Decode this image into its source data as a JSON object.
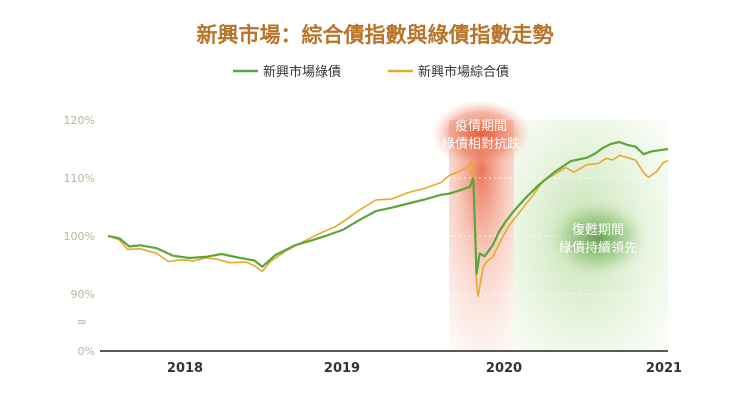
{
  "title": "新興市場：綜合債指數與綠債指數走勢",
  "colors": {
    "title": "#b8742a",
    "green_series": "#5aa63a",
    "orange_series": "#e8a92b",
    "axis_label": "#b9b79a",
    "axis_line": "#222222",
    "year_label": "#333333",
    "covid_band": "#e9785a",
    "recovery_band": "#c9e3b2",
    "annotation_text": "#ffffff"
  },
  "annotations": {
    "covid": {
      "line1": "疫情期間",
      "line2": "綠債相對抗跌"
    },
    "recovery": {
      "line1": "復甦期間",
      "line2": "綠債持續領先"
    }
  },
  "axis_break_symbol": "≈",
  "chart_data": {
    "type": "line",
    "ylim": [
      0,
      120
    ],
    "y_scale": "broken axis: 0% then 90%–120%",
    "yticks": [
      {
        "label": "120%",
        "value": 120
      },
      {
        "label": "110%",
        "value": 110
      },
      {
        "label": "100%",
        "value": 100
      },
      {
        "label": "90%",
        "value": 90
      },
      {
        "label": "0%",
        "value": 0
      }
    ],
    "xticks": [
      {
        "label": "2018",
        "value": 2018.0
      },
      {
        "label": "2019",
        "value": 2019.0
      },
      {
        "label": "2020",
        "value": 2020.0
      },
      {
        "label": "2021",
        "value": 2021.0
      }
    ],
    "xlim": [
      2017.5,
      2021.0
    ],
    "grid": false,
    "legend_placement": "top-center",
    "series": [
      {
        "name": "新興市場綠債",
        "color": "#5aa63a",
        "points": [
          [
            2017.55,
            100.0
          ],
          [
            2017.62,
            99.6
          ],
          [
            2017.68,
            98.2
          ],
          [
            2017.75,
            98.4
          ],
          [
            2017.85,
            97.9
          ],
          [
            2017.95,
            96.6
          ],
          [
            2018.05,
            96.2
          ],
          [
            2018.15,
            96.4
          ],
          [
            2018.25,
            96.9
          ],
          [
            2018.35,
            96.3
          ],
          [
            2018.45,
            95.8
          ],
          [
            2018.5,
            94.7
          ],
          [
            2018.58,
            96.7
          ],
          [
            2018.7,
            98.4
          ],
          [
            2018.8,
            99.2
          ],
          [
            2018.9,
            100.1
          ],
          [
            2019.0,
            101.1
          ],
          [
            2019.1,
            102.8
          ],
          [
            2019.2,
            104.3
          ],
          [
            2019.3,
            104.9
          ],
          [
            2019.4,
            105.6
          ],
          [
            2019.5,
            106.3
          ],
          [
            2019.6,
            107.1
          ],
          [
            2019.65,
            107.3
          ],
          [
            2019.72,
            107.9
          ],
          [
            2019.78,
            108.5
          ],
          [
            2019.8,
            110.0
          ],
          [
            2019.81,
            102.0
          ],
          [
            2019.82,
            93.5
          ],
          [
            2019.84,
            97.0
          ],
          [
            2019.87,
            96.5
          ],
          [
            2019.92,
            98.4
          ],
          [
            2019.96,
            100.8
          ],
          [
            2020.0,
            102.5
          ],
          [
            2020.05,
            104.3
          ],
          [
            2020.12,
            106.5
          ],
          [
            2020.2,
            108.7
          ],
          [
            2020.3,
            111.0
          ],
          [
            2020.4,
            112.9
          ],
          [
            2020.5,
            113.5
          ],
          [
            2020.55,
            114.2
          ],
          [
            2020.6,
            115.2
          ],
          [
            2020.65,
            115.9
          ],
          [
            2020.7,
            116.2
          ],
          [
            2020.75,
            115.7
          ],
          [
            2020.8,
            115.4
          ],
          [
            2020.85,
            114.1
          ],
          [
            2020.9,
            114.6
          ],
          [
            2020.95,
            114.8
          ],
          [
            2021.0,
            115.0
          ]
        ]
      },
      {
        "name": "新興市場綜合債",
        "color": "#e8a92b",
        "points": [
          [
            2017.55,
            100.1
          ],
          [
            2017.62,
            99.3
          ],
          [
            2017.67,
            97.7
          ],
          [
            2017.75,
            97.8
          ],
          [
            2017.85,
            97.0
          ],
          [
            2017.92,
            95.6
          ],
          [
            2018.0,
            95.9
          ],
          [
            2018.08,
            95.7
          ],
          [
            2018.15,
            96.2
          ],
          [
            2018.22,
            96.0
          ],
          [
            2018.3,
            95.4
          ],
          [
            2018.4,
            95.5
          ],
          [
            2018.45,
            94.9
          ],
          [
            2018.5,
            93.9
          ],
          [
            2018.55,
            95.6
          ],
          [
            2018.65,
            97.5
          ],
          [
            2018.75,
            99.0
          ],
          [
            2018.85,
            100.4
          ],
          [
            2018.95,
            101.6
          ],
          [
            2019.02,
            102.9
          ],
          [
            2019.1,
            104.5
          ],
          [
            2019.2,
            106.2
          ],
          [
            2019.3,
            106.4
          ],
          [
            2019.4,
            107.5
          ],
          [
            2019.5,
            108.2
          ],
          [
            2019.6,
            109.2
          ],
          [
            2019.65,
            110.4
          ],
          [
            2019.72,
            111.2
          ],
          [
            2019.77,
            112.0
          ],
          [
            2019.79,
            112.9
          ],
          [
            2019.8,
            111.0
          ],
          [
            2019.81,
            100.5
          ],
          [
            2019.82,
            92.0
          ],
          [
            2019.83,
            89.6
          ],
          [
            2019.86,
            94.5
          ],
          [
            2019.88,
            95.5
          ],
          [
            2019.92,
            96.4
          ],
          [
            2019.97,
            99.2
          ],
          [
            2020.02,
            101.8
          ],
          [
            2020.1,
            104.6
          ],
          [
            2020.17,
            107.1
          ],
          [
            2020.23,
            109.5
          ],
          [
            2020.3,
            110.6
          ],
          [
            2020.37,
            111.8
          ],
          [
            2020.42,
            111.0
          ],
          [
            2020.5,
            112.3
          ],
          [
            2020.57,
            112.5
          ],
          [
            2020.62,
            113.4
          ],
          [
            2020.66,
            113.1
          ],
          [
            2020.7,
            113.9
          ],
          [
            2020.75,
            113.5
          ],
          [
            2020.8,
            113.1
          ],
          [
            2020.85,
            110.9
          ],
          [
            2020.88,
            110.1
          ],
          [
            2020.93,
            111.1
          ],
          [
            2020.97,
            112.6
          ],
          [
            2021.0,
            113.0
          ]
        ]
      }
    ]
  }
}
